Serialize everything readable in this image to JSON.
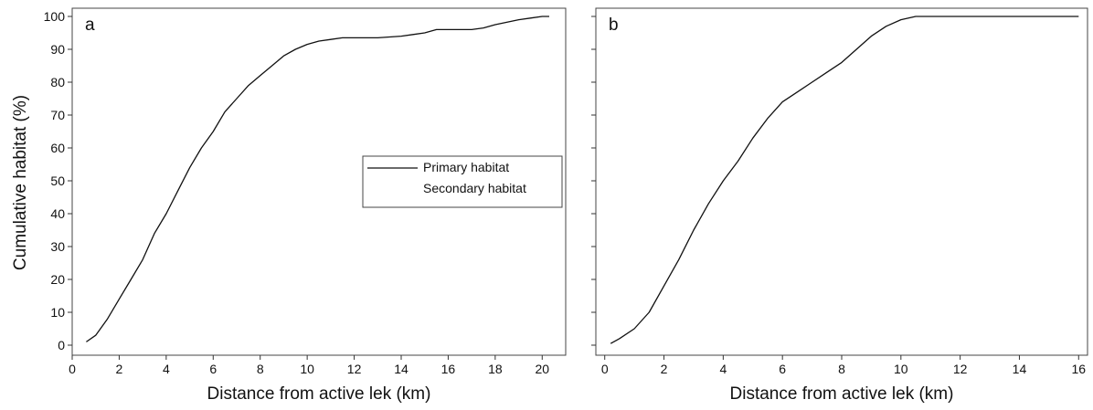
{
  "figure": {
    "ylabel": "Cumulative habitat (%)"
  },
  "chart_data": [
    {
      "type": "line",
      "panel_label": "a",
      "xlabel": "Distance from active lek (km)",
      "xlim": [
        0,
        21
      ],
      "ylim": [
        0,
        100
      ],
      "xticks": [
        0,
        2,
        4,
        6,
        8,
        10,
        12,
        14,
        16,
        18,
        20
      ],
      "yticks": [
        0,
        10,
        20,
        30,
        40,
        50,
        60,
        70,
        80,
        90,
        100
      ],
      "legend": {
        "position": "center-right",
        "entries": [
          "Primary habitat",
          "Secondary habitat"
        ]
      },
      "series": [
        {
          "name": "Primary habitat",
          "x": [
            0.6,
            1.0,
            1.5,
            2.0,
            2.5,
            3.0,
            3.5,
            4.0,
            4.5,
            5.0,
            5.5,
            6.0,
            6.5,
            7.0,
            7.5,
            8.0,
            8.5,
            9.0,
            9.5,
            10.0,
            10.5,
            11.0,
            11.5,
            12.0,
            13.0,
            14.0,
            14.5,
            15.0,
            15.5,
            16.0,
            17.0,
            17.5,
            18.0,
            19.0,
            19.5,
            20.0,
            20.3
          ],
          "y": [
            1,
            3,
            8,
            14,
            20,
            26,
            34,
            40,
            47,
            54,
            60,
            65,
            71,
            75,
            79,
            82,
            85,
            88,
            90,
            91.5,
            92.5,
            93,
            93.5,
            93.5,
            93.5,
            94,
            94.5,
            95,
            96,
            96,
            96,
            96.5,
            97.5,
            99,
            99.5,
            100,
            100
          ]
        }
      ]
    },
    {
      "type": "line",
      "panel_label": "b",
      "xlabel": "Distance from active lek (km)",
      "xlim": [
        -0.3,
        16.3
      ],
      "ylim": [
        0,
        100
      ],
      "xticks": [
        0,
        2,
        4,
        6,
        8,
        10,
        12,
        14,
        16
      ],
      "yticks": [
        0,
        10,
        20,
        30,
        40,
        50,
        60,
        70,
        80,
        90,
        100
      ],
      "series": [
        {
          "name": "Primary habitat",
          "x": [
            0.2,
            0.5,
            1.0,
            1.5,
            2.0,
            2.5,
            3.0,
            3.5,
            4.0,
            4.5,
            5.0,
            5.5,
            6.0,
            6.5,
            7.0,
            7.5,
            8.0,
            8.5,
            9.0,
            9.5,
            10.0,
            10.5,
            11.0,
            12.0,
            13.0,
            14.0,
            15.0,
            16.0
          ],
          "y": [
            0.5,
            2,
            5,
            10,
            18,
            26,
            35,
            43,
            50,
            56,
            63,
            69,
            74,
            77,
            80,
            83,
            86,
            90,
            94,
            97,
            99,
            100,
            100,
            100,
            100,
            100,
            100,
            100
          ]
        }
      ]
    }
  ]
}
